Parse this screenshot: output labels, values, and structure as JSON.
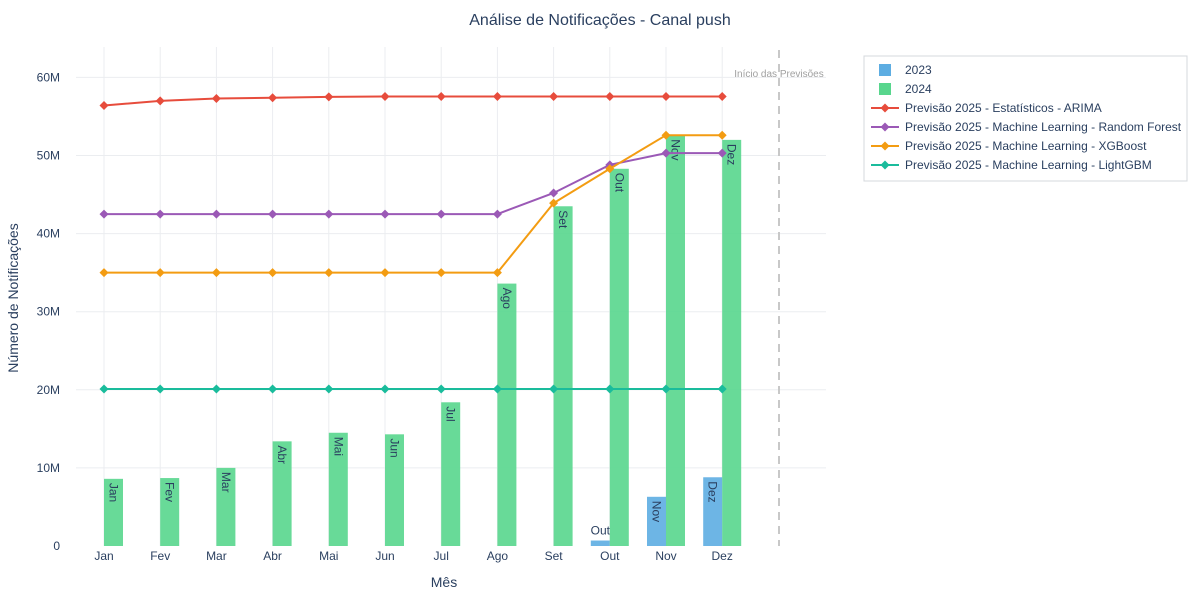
{
  "chart_data": {
    "type": "bar",
    "title": "Análise de Notificações - Canal push",
    "xlabel": "Mês",
    "ylabel": "Número de Notificações",
    "categories": [
      "Jan",
      "Fev",
      "Mar",
      "Abr",
      "Mai",
      "Jun",
      "Jul",
      "Ago",
      "Set",
      "Out",
      "Nov",
      "Dez"
    ],
    "ylim": [
      0,
      63000000
    ],
    "y_ticks": [
      {
        "value": 0,
        "label": "0"
      },
      {
        "value": 10000000,
        "label": "10M"
      },
      {
        "value": 20000000,
        "label": "20M"
      },
      {
        "value": 30000000,
        "label": "30M"
      },
      {
        "value": 40000000,
        "label": "40M"
      },
      {
        "value": 50000000,
        "label": "50M"
      },
      {
        "value": 60000000,
        "label": "60M"
      }
    ],
    "grid": true,
    "legend_position": "top-right",
    "annotation": "Início das Previsões",
    "bar_series": [
      {
        "name": "2023",
        "color": "#5dade2",
        "values": [
          null,
          null,
          null,
          null,
          null,
          null,
          null,
          null,
          null,
          700000,
          6300000,
          8800000
        ],
        "labels": [
          "",
          "",
          "",
          "",
          "",
          "",
          "",
          "",
          "",
          "Out",
          "Nov",
          "Dez"
        ]
      },
      {
        "name": "2024",
        "color": "#58d68d",
        "values": [
          8600000,
          8700000,
          10000000,
          13400000,
          14500000,
          14300000,
          18400000,
          33600000,
          43500000,
          48300000,
          52600000,
          52000000
        ],
        "labels": [
          "Jan",
          "Fev",
          "Mar",
          "Abr",
          "Mai",
          "Jun",
          "Jul",
          "Ago",
          "Set",
          "Out",
          "Nov",
          "Dez"
        ]
      }
    ],
    "line_series": [
      {
        "name": "Previsão 2025 - Estatísticos - ARIMA",
        "color": "#e74c3c",
        "values": [
          56400000,
          57000000,
          57300000,
          57400000,
          57500000,
          57550000,
          57550000,
          57550000,
          57550000,
          57550000,
          57550000,
          57550000
        ]
      },
      {
        "name": "Previsão 2025 - Machine Learning - Random Forest",
        "color": "#9b59b6",
        "values": [
          42500000,
          42500000,
          42500000,
          42500000,
          42500000,
          42500000,
          42500000,
          42500000,
          45200000,
          48800000,
          50300000,
          50300000
        ]
      },
      {
        "name": "Previsão 2025 - Machine Learning - XGBoost",
        "color": "#f39c12",
        "values": [
          35000000,
          35000000,
          35000000,
          35000000,
          35000000,
          35000000,
          35000000,
          35000000,
          43900000,
          48300000,
          52600000,
          52600000
        ]
      },
      {
        "name": "Previsão 2025 - Machine Learning - LightGBM",
        "color": "#1abc9c",
        "values": [
          20100000,
          20100000,
          20100000,
          20100000,
          20100000,
          20100000,
          20100000,
          20100000,
          20100000,
          20100000,
          20100000,
          20100000
        ]
      }
    ]
  }
}
